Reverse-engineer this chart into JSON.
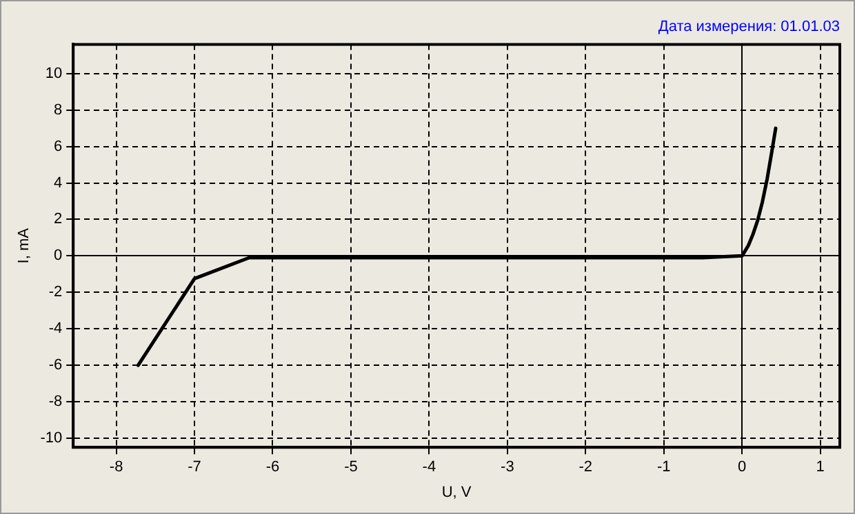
{
  "chart_data": {
    "type": "line",
    "title": "Дата измерения: 01.01.03",
    "xlabel": "U, V",
    "ylabel": "I, mA",
    "series": [
      {
        "color": "#000000",
        "x": [
          -7.72,
          -7,
          -6.3,
          -0.5,
          0,
          0.08,
          0.14,
          0.2,
          0.26,
          0.32,
          0.38,
          0.43
        ],
        "values": [
          -6,
          -1.25,
          -0.1,
          -0.1,
          0,
          0.56,
          1.19,
          1.95,
          2.96,
          4.2,
          5.7,
          7.0
        ]
      }
    ],
    "xlim": [
      -8.55,
      1.25
    ],
    "xticks": [
      -8,
      -7,
      -6,
      -5,
      -4,
      -3,
      -2,
      -1,
      0,
      1
    ],
    "ylim": [
      -10.5,
      11.6
    ],
    "yticks": [
      -10,
      -8,
      -6,
      -4,
      -2,
      0,
      2,
      4,
      6,
      8,
      10
    ],
    "grid": true,
    "legend": false,
    "marker": "none",
    "line_style": "solid"
  }
}
